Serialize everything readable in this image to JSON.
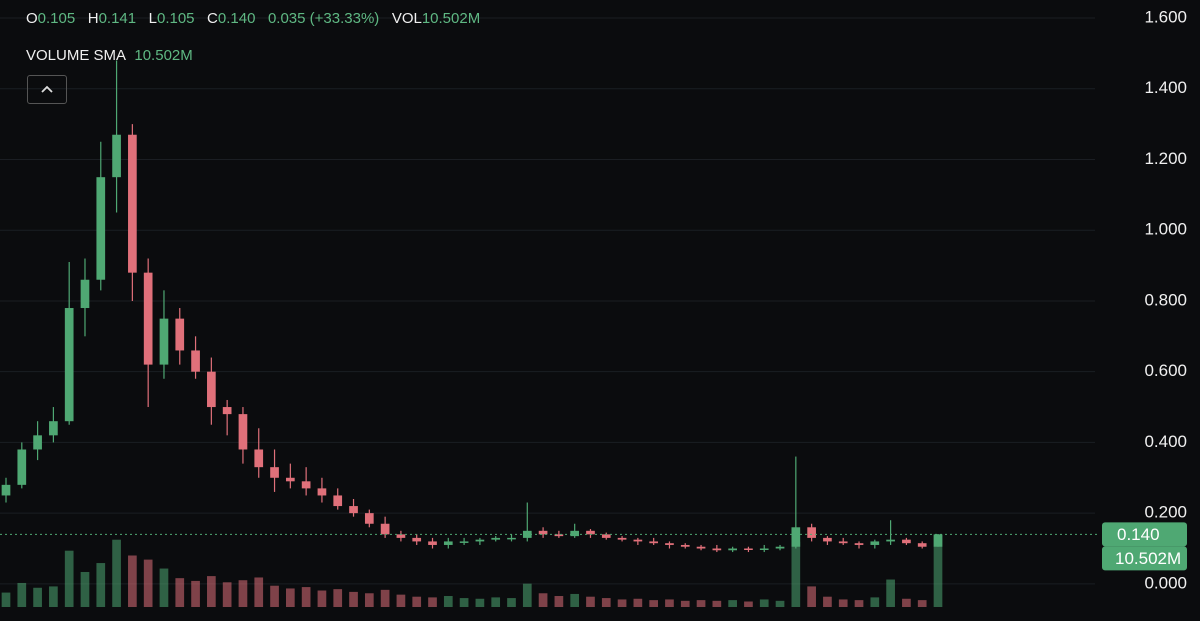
{
  "chart_data": {
    "type": "candlestick",
    "ohlc": [
      {
        "label": "O",
        "value": "0.105"
      },
      {
        "label": "H",
        "value": "0.141"
      },
      {
        "label": "L",
        "value": "0.105"
      },
      {
        "label": "C",
        "value": "0.140"
      }
    ],
    "change": "0.035",
    "change_pct": "(+33.33%)",
    "vol_label": "VOL",
    "vol_value": "10.502M",
    "sma_label": "VOLUME SMA",
    "sma_value": "10.502M",
    "price_tag": "0.140",
    "price_tag_value": 0.14,
    "volume_tag": "10.502M",
    "up_color": "#4fa873",
    "down_color": "#e0707a",
    "ylim": [
      -0.105,
      1.651
    ],
    "yticks": [
      {
        "value": 0,
        "label": "0.000"
      },
      {
        "value": 0.2,
        "label": "0.200"
      },
      {
        "value": 0.4,
        "label": "0.400"
      },
      {
        "value": 0.6,
        "label": "0.600"
      },
      {
        "value": 0.8,
        "label": "0.800"
      },
      {
        "value": 1.0,
        "label": "1.000"
      },
      {
        "value": 1.2,
        "label": "1.200"
      },
      {
        "value": 1.4,
        "label": "1.400"
      },
      {
        "value": 1.6,
        "label": "1.600"
      }
    ],
    "grid": true,
    "volume_ylim": [
      0,
      15
    ],
    "open": [
      0.25,
      0.28,
      0.38,
      0.42,
      0.46,
      0.78,
      0.86,
      1.15,
      1.27,
      0.88,
      0.62,
      0.75,
      0.66,
      0.6,
      0.5,
      0.48,
      0.38,
      0.33,
      0.3,
      0.29,
      0.27,
      0.25,
      0.22,
      0.2,
      0.17,
      0.14,
      0.13,
      0.12,
      0.11,
      0.12,
      0.12,
      0.125,
      0.13,
      0.13,
      0.15,
      0.14,
      0.135,
      0.15,
      0.14,
      0.13,
      0.125,
      0.12,
      0.115,
      0.11,
      0.105,
      0.1,
      0.095,
      0.1,
      0.098,
      0.1,
      0.105,
      0.16,
      0.13,
      0.12,
      0.115,
      0.11,
      0.12,
      0.125,
      0.115,
      0.105
    ],
    "high": [
      0.3,
      0.4,
      0.46,
      0.5,
      0.91,
      0.92,
      1.25,
      1.48,
      1.3,
      0.92,
      0.83,
      0.78,
      0.7,
      0.64,
      0.52,
      0.5,
      0.44,
      0.38,
      0.34,
      0.33,
      0.3,
      0.27,
      0.24,
      0.21,
      0.19,
      0.15,
      0.14,
      0.13,
      0.13,
      0.13,
      0.13,
      0.135,
      0.14,
      0.23,
      0.16,
      0.15,
      0.17,
      0.155,
      0.145,
      0.135,
      0.13,
      0.13,
      0.12,
      0.115,
      0.11,
      0.11,
      0.105,
      0.105,
      0.11,
      0.11,
      0.36,
      0.17,
      0.135,
      0.13,
      0.12,
      0.125,
      0.18,
      0.13,
      0.12,
      0.141
    ],
    "low": [
      0.23,
      0.27,
      0.35,
      0.4,
      0.45,
      0.7,
      0.83,
      1.05,
      0.8,
      0.5,
      0.58,
      0.62,
      0.58,
      0.45,
      0.42,
      0.34,
      0.3,
      0.26,
      0.27,
      0.25,
      0.23,
      0.21,
      0.19,
      0.16,
      0.13,
      0.12,
      0.11,
      0.1,
      0.1,
      0.11,
      0.11,
      0.12,
      0.12,
      0.12,
      0.13,
      0.13,
      0.13,
      0.13,
      0.125,
      0.12,
      0.11,
      0.11,
      0.1,
      0.1,
      0.095,
      0.09,
      0.09,
      0.09,
      0.09,
      0.095,
      0.1,
      0.12,
      0.11,
      0.11,
      0.1,
      0.1,
      0.11,
      0.11,
      0.1,
      0.105
    ],
    "close": [
      0.28,
      0.38,
      0.42,
      0.46,
      0.78,
      0.86,
      1.15,
      1.27,
      0.88,
      0.62,
      0.75,
      0.66,
      0.6,
      0.5,
      0.48,
      0.38,
      0.33,
      0.3,
      0.29,
      0.27,
      0.25,
      0.22,
      0.2,
      0.17,
      0.14,
      0.13,
      0.12,
      0.11,
      0.12,
      0.12,
      0.125,
      0.13,
      0.13,
      0.15,
      0.14,
      0.135,
      0.15,
      0.14,
      0.13,
      0.125,
      0.12,
      0.115,
      0.11,
      0.105,
      0.1,
      0.095,
      0.1,
      0.098,
      0.1,
      0.105,
      0.16,
      0.13,
      0.12,
      0.115,
      0.11,
      0.12,
      0.125,
      0.115,
      0.105,
      0.14
    ],
    "volume": [
      2.1,
      3.5,
      2.8,
      3.0,
      8.2,
      5.1,
      6.4,
      9.8,
      7.5,
      6.9,
      5.6,
      4.2,
      3.8,
      4.5,
      3.6,
      3.9,
      4.3,
      3.1,
      2.7,
      2.9,
      2.4,
      2.6,
      2.2,
      2.0,
      2.5,
      1.8,
      1.5,
      1.4,
      1.6,
      1.3,
      1.2,
      1.4,
      1.3,
      3.4,
      2.0,
      1.6,
      1.9,
      1.5,
      1.3,
      1.1,
      1.2,
      1.0,
      1.1,
      0.9,
      1.0,
      0.9,
      1.0,
      0.8,
      1.1,
      0.9,
      9.5,
      3.0,
      1.5,
      1.1,
      1.0,
      1.4,
      4.0,
      1.2,
      1.0,
      10.502
    ]
  }
}
